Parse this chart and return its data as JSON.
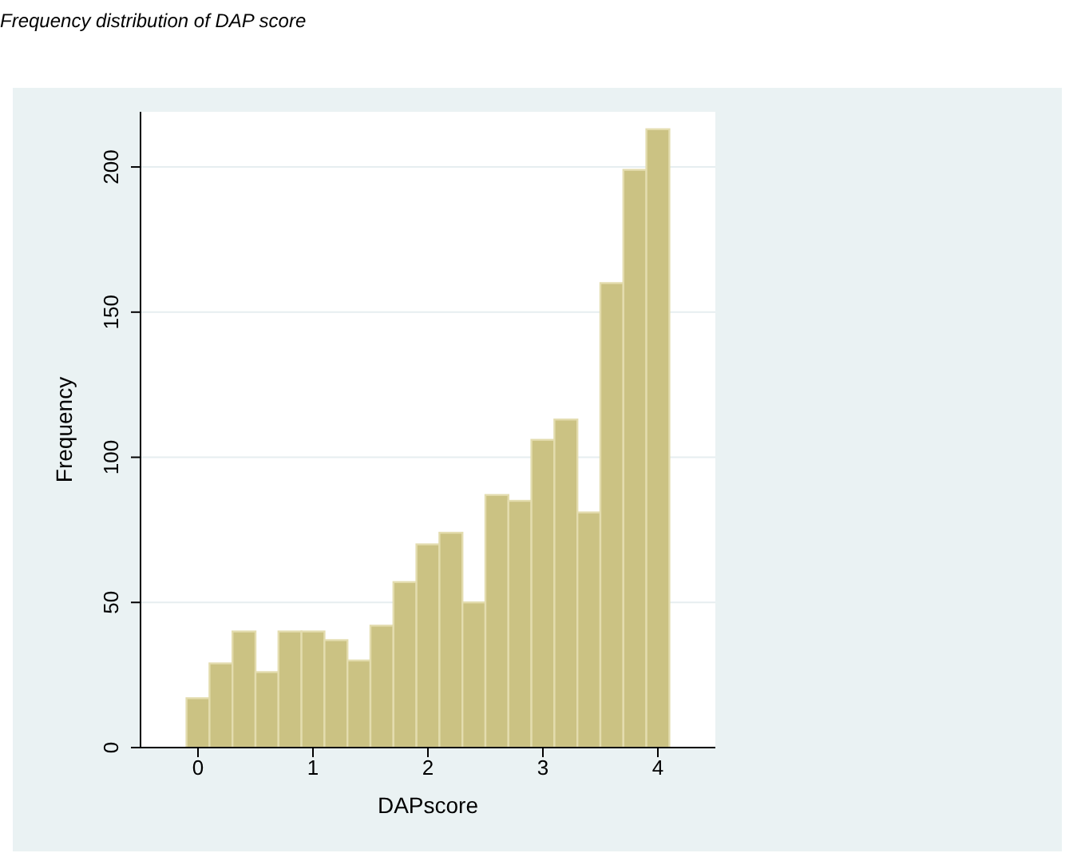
{
  "chart_data": {
    "type": "histogram",
    "title": "Frequency distribution of DAP score",
    "xlabel": "DAPscore",
    "ylabel": "Frequency",
    "bins": [
      -0.1,
      0.1,
      0.3,
      0.5,
      0.7,
      0.9,
      1.1,
      1.3,
      1.5,
      1.7,
      1.9,
      2.1,
      2.3,
      2.5,
      2.7,
      2.9,
      3.1,
      3.3,
      3.5,
      3.7,
      3.9,
      4.1
    ],
    "values": [
      17,
      29,
      40,
      26,
      40,
      40,
      37,
      30,
      42,
      57,
      70,
      74,
      50,
      87,
      85,
      106,
      113,
      81,
      160,
      199,
      213
    ],
    "color": "#cbc283",
    "xlim": [
      -0.5,
      4.5
    ],
    "ylim": [
      0,
      219
    ],
    "xticks": [
      0,
      1,
      2,
      3,
      4
    ],
    "yticks": [
      0,
      50,
      100,
      150,
      200
    ],
    "grid": "y"
  }
}
